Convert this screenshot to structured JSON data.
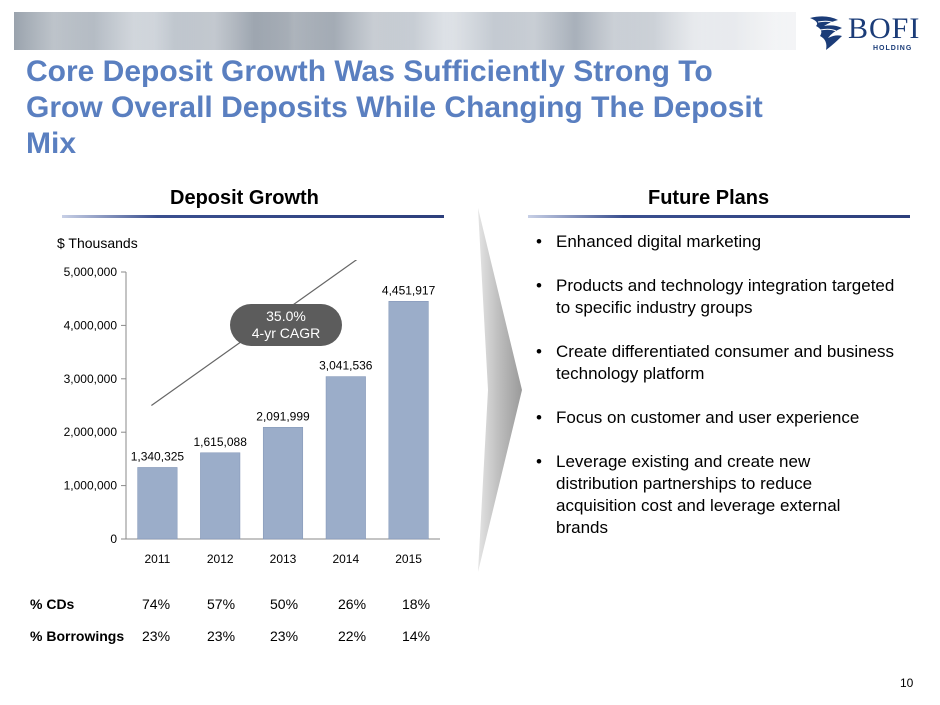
{
  "logo": {
    "brand": "BOFI",
    "sub": "HOLDING"
  },
  "title": "Core Deposit Growth Was Sufficiently Strong To Grow Overall Deposits While Changing The Deposit Mix",
  "left_section": {
    "heading": "Deposit  Growth",
    "units": "$ Thousands"
  },
  "right_section": {
    "heading": "Future Plans"
  },
  "cagr": {
    "line1": "35.0%",
    "line2": "4-yr CAGR"
  },
  "chart_data": {
    "type": "bar",
    "title": "Deposit  Growth",
    "ylabel": "$ Thousands",
    "xlabel": "",
    "categories": [
      "2011",
      "2012",
      "2013",
      "2014",
      "2015"
    ],
    "values": [
      1340325,
      1615088,
      2091999,
      3041536,
      4451917
    ],
    "data_labels": [
      "1,340,325",
      "1,615,088",
      "2,091,999",
      "3,041,536",
      "4,451,917"
    ],
    "ylim": [
      0,
      5000000
    ],
    "yticks": [
      0,
      1000000,
      2000000,
      3000000,
      4000000,
      5000000
    ],
    "ytick_labels": [
      "0",
      "1,000,000",
      "2,000,000",
      "3,000,000",
      "4,000,000",
      "5,000,000"
    ],
    "grid": false,
    "annotation": "35.0% 4-yr CAGR",
    "bar_color": "#9badc9"
  },
  "stats": {
    "rows": [
      {
        "label": "% CDs",
        "values": [
          "74%",
          "57%",
          "50%",
          "26%",
          "18%"
        ]
      },
      {
        "label": "% Borrowings",
        "values": [
          "23%",
          "23%",
          "23%",
          "22%",
          "14%"
        ]
      }
    ]
  },
  "plans": [
    "Enhanced digital marketing",
    "Products and technology integration targeted to specific industry groups",
    "Create differentiated consumer and business technology platform",
    "Focus on customer and user experience",
    "Leverage existing and create new distribution partnerships to reduce acquisition cost and leverage external brands"
  ],
  "page_number": "10",
  "colors": {
    "title": "#5a7fc0",
    "bar": "#9badc9",
    "navy": "#2d3f7c",
    "bubble": "#5c5c5c"
  }
}
